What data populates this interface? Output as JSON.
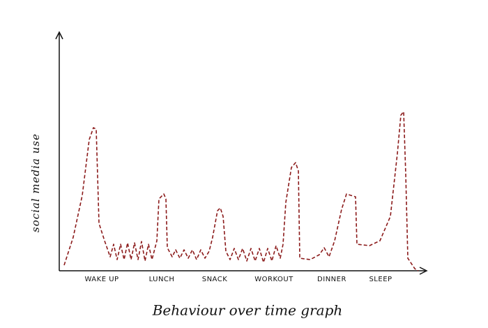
{
  "chart_data": {
    "type": "line",
    "title": "Behaviour over time graph",
    "ylabel": "social media use",
    "xlim": [
      0,
      527
    ],
    "ylim": [
      0,
      343
    ],
    "xticks": [
      {
        "value": 61,
        "label": "WAKE UP"
      },
      {
        "value": 147,
        "label": "LUNCH"
      },
      {
        "value": 223,
        "label": "SNACK"
      },
      {
        "value": 308,
        "label": "WORKOUT"
      },
      {
        "value": 391,
        "label": "DINNER"
      },
      {
        "value": 461,
        "label": "SLEEP"
      }
    ],
    "series": [
      {
        "color": "#8b1a1a",
        "x": [
          7,
          20,
          33,
          43,
          49,
          53,
          57,
          65,
          73,
          78,
          83,
          88,
          93,
          98,
          103,
          108,
          113,
          118,
          123,
          128,
          133,
          140,
          143,
          150,
          153,
          155,
          162,
          167,
          173,
          179,
          185,
          191,
          197,
          203,
          209,
          215,
          220,
          227,
          231,
          235,
          239,
          245,
          251,
          257,
          263,
          269,
          275,
          281,
          287,
          293,
          299,
          305,
          311,
          317,
          321,
          325,
          333,
          339,
          343,
          345,
          360,
          373,
          380,
          387,
          395,
          405,
          412,
          425,
          427,
          445,
          460,
          475,
          485,
          490,
          494,
          497,
          500,
          510,
          515
        ],
        "values": [
          8,
          48,
          108,
          188,
          205,
          203,
          68,
          43,
          20,
          38,
          16,
          38,
          16,
          40,
          16,
          40,
          16,
          42,
          14,
          38,
          16,
          43,
          103,
          110,
          103,
          33,
          20,
          30,
          18,
          30,
          18,
          30,
          16,
          30,
          18,
          28,
          48,
          86,
          90,
          78,
          28,
          16,
          32,
          16,
          32,
          14,
          32,
          14,
          32,
          12,
          32,
          14,
          36,
          18,
          38,
          98,
          148,
          155,
          143,
          18,
          16,
          23,
          33,
          20,
          43,
          88,
          110,
          106,
          38,
          36,
          43,
          78,
          168,
          223,
          228,
          138,
          18,
          3,
          0
        ]
      }
    ]
  }
}
